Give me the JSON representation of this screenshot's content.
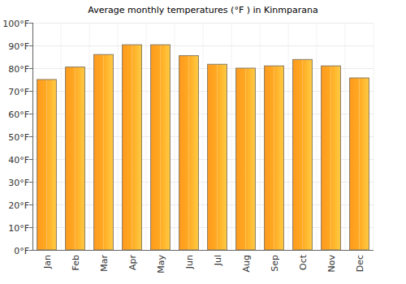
{
  "chart_data": {
    "type": "bar",
    "title": "Average monthly temperatures (°F ) in Kinmparana",
    "categories": [
      "Jan",
      "Feb",
      "Mar",
      "Apr",
      "May",
      "Jun",
      "Jul",
      "Aug",
      "Sep",
      "Oct",
      "Nov",
      "Dec"
    ],
    "values": [
      75,
      80.5,
      86,
      90.3,
      90.3,
      85.5,
      81.7,
      80,
      81,
      83.8,
      81,
      75.7
    ],
    "color": "#ffaa22",
    "ylim": [
      0,
      100
    ],
    "yticks": [
      {
        "value": 0,
        "label": "0°F"
      },
      {
        "value": 10,
        "label": "10°F"
      },
      {
        "value": 20,
        "label": "20°F"
      },
      {
        "value": 30,
        "label": "30°F"
      },
      {
        "value": 40,
        "label": "40°F"
      },
      {
        "value": 50,
        "label": "50°F"
      },
      {
        "value": 60,
        "label": "60°F"
      },
      {
        "value": 70,
        "label": "70°F"
      },
      {
        "value": 80,
        "label": "80°F"
      },
      {
        "value": 90,
        "label": "90°F"
      },
      {
        "value": 100,
        "label": "100°F"
      }
    ],
    "grid": true
  }
}
